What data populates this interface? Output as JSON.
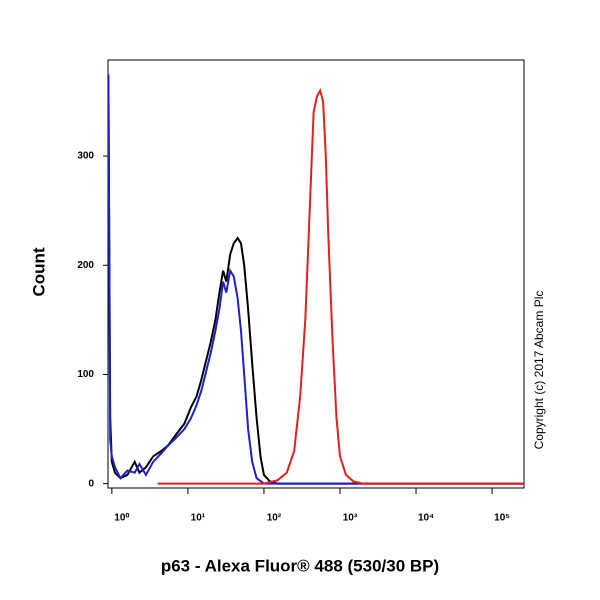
{
  "chart_data": {
    "type": "line",
    "x_label": "p63 - Alexa Fluor® 488 (530/30 BP)",
    "y_label": "Count",
    "annotation": "Copyright (c) 2017 Abcam Plc",
    "x_scale": "log",
    "xlim": [
      0.89,
      263000
    ],
    "ylim": [
      -4,
      388
    ],
    "xticks": [
      {
        "value": 1,
        "label": "10⁰"
      },
      {
        "value": 10,
        "label": "10¹"
      },
      {
        "value": 100,
        "label": "10²"
      },
      {
        "value": 1000,
        "label": "10³"
      },
      {
        "value": 10000,
        "label": "10⁴"
      },
      {
        "value": 100000,
        "label": "10⁵"
      }
    ],
    "yticks": [
      0,
      100,
      200,
      300
    ],
    "series": [
      {
        "color": "#000000",
        "x": [
          0.9,
          0.95,
          1.0,
          1.1,
          1.3,
          1.6,
          2,
          2.3,
          2.8,
          3.5,
          4.5,
          5.5,
          7,
          9,
          11,
          13,
          15,
          17,
          20,
          23,
          26,
          29,
          32,
          36,
          40,
          45,
          50,
          55,
          62,
          70,
          80,
          90,
          100,
          120,
          150,
          263000
        ],
        "values": [
          370,
          60,
          20,
          10,
          5,
          8,
          20,
          10,
          15,
          25,
          30,
          35,
          45,
          55,
          70,
          80,
          95,
          110,
          130,
          150,
          175,
          195,
          185,
          210,
          220,
          225,
          220,
          200,
          160,
          110,
          60,
          25,
          8,
          2,
          0,
          0
        ]
      },
      {
        "color": "#1f1fcc",
        "x": [
          0.9,
          0.95,
          1.0,
          1.1,
          1.3,
          1.6,
          2,
          2.3,
          2.8,
          3.5,
          4.5,
          5.5,
          7,
          9,
          11,
          13,
          15,
          17,
          20,
          23,
          26,
          29,
          32,
          36,
          40,
          45,
          50,
          55,
          62,
          70,
          80,
          100,
          263000
        ],
        "values": [
          375,
          40,
          25,
          15,
          5,
          12,
          10,
          18,
          8,
          20,
          28,
          35,
          42,
          50,
          60,
          72,
          85,
          100,
          120,
          140,
          160,
          185,
          175,
          195,
          190,
          170,
          140,
          100,
          50,
          20,
          5,
          0,
          0
        ]
      },
      {
        "color": "#e02020",
        "x": [
          4,
          100,
          150,
          200,
          250,
          300,
          350,
          400,
          450,
          500,
          550,
          600,
          650,
          700,
          800,
          900,
          1000,
          1200,
          1500,
          2000,
          263000
        ],
        "values": [
          0,
          0,
          3,
          10,
          30,
          80,
          150,
          250,
          340,
          355,
          360,
          350,
          300,
          230,
          130,
          60,
          25,
          8,
          2,
          0,
          0
        ]
      }
    ]
  }
}
